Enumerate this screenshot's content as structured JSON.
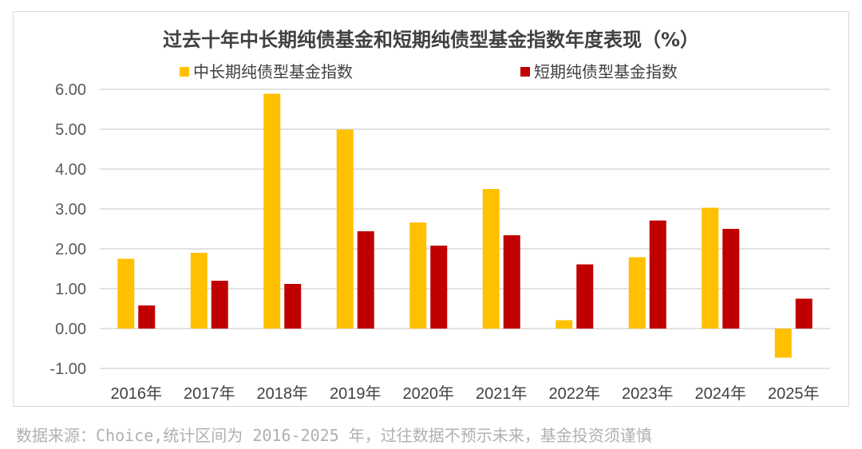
{
  "chart_data": {
    "type": "bar",
    "title": "过去十年中长期纯债基金和短期纯债型基金指数年度表现（%）",
    "categories": [
      "2016年",
      "2017年",
      "2018年",
      "2019年",
      "2020年",
      "2021年",
      "2022年",
      "2023年",
      "2024年",
      "2025年"
    ],
    "series": [
      {
        "name": "中长期纯债型基金指数",
        "color": "#ffc000",
        "values": [
          1.75,
          1.9,
          5.89,
          4.99,
          2.66,
          3.5,
          0.21,
          1.79,
          3.03,
          -0.73
        ]
      },
      {
        "name": "短期纯债型基金指数",
        "color": "#c00000",
        "values": [
          0.58,
          1.2,
          1.12,
          2.44,
          2.08,
          2.34,
          1.61,
          2.71,
          2.5,
          0.75
        ]
      }
    ],
    "yticks": [
      "6.00",
      "5.00",
      "4.00",
      "3.00",
      "2.00",
      "1.00",
      "0.00",
      "-1.00"
    ],
    "ylim": [
      -1,
      6
    ],
    "grid": true,
    "legend": "top"
  },
  "source_note": "数据来源：Choice,统计区间为 2016-2025 年，过往数据不预示未来，基金投资须谨慎"
}
